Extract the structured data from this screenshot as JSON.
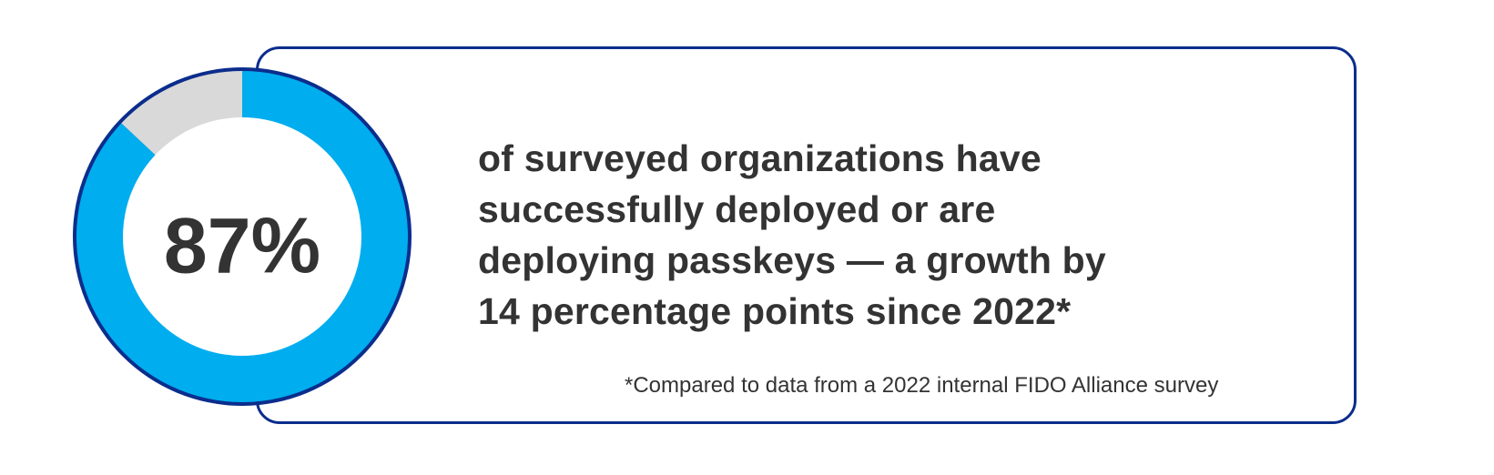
{
  "chart_data": {
    "type": "pie",
    "variant": "donut",
    "value_percent": 87,
    "remainder_percent": 13,
    "center_label": "87%",
    "colors": {
      "filled": "#00adef",
      "remainder": "#d9d9d9",
      "outline": "#0b2d8c",
      "text": "#333333"
    }
  },
  "callout": {
    "headline_lines": [
      "of surveyed organizations have",
      "successfully deployed or are",
      "deploying passkeys — a growth by",
      "14 percentage points since 2022*"
    ],
    "footnote": "*Compared to data from a 2022 internal FIDO Alliance survey"
  }
}
